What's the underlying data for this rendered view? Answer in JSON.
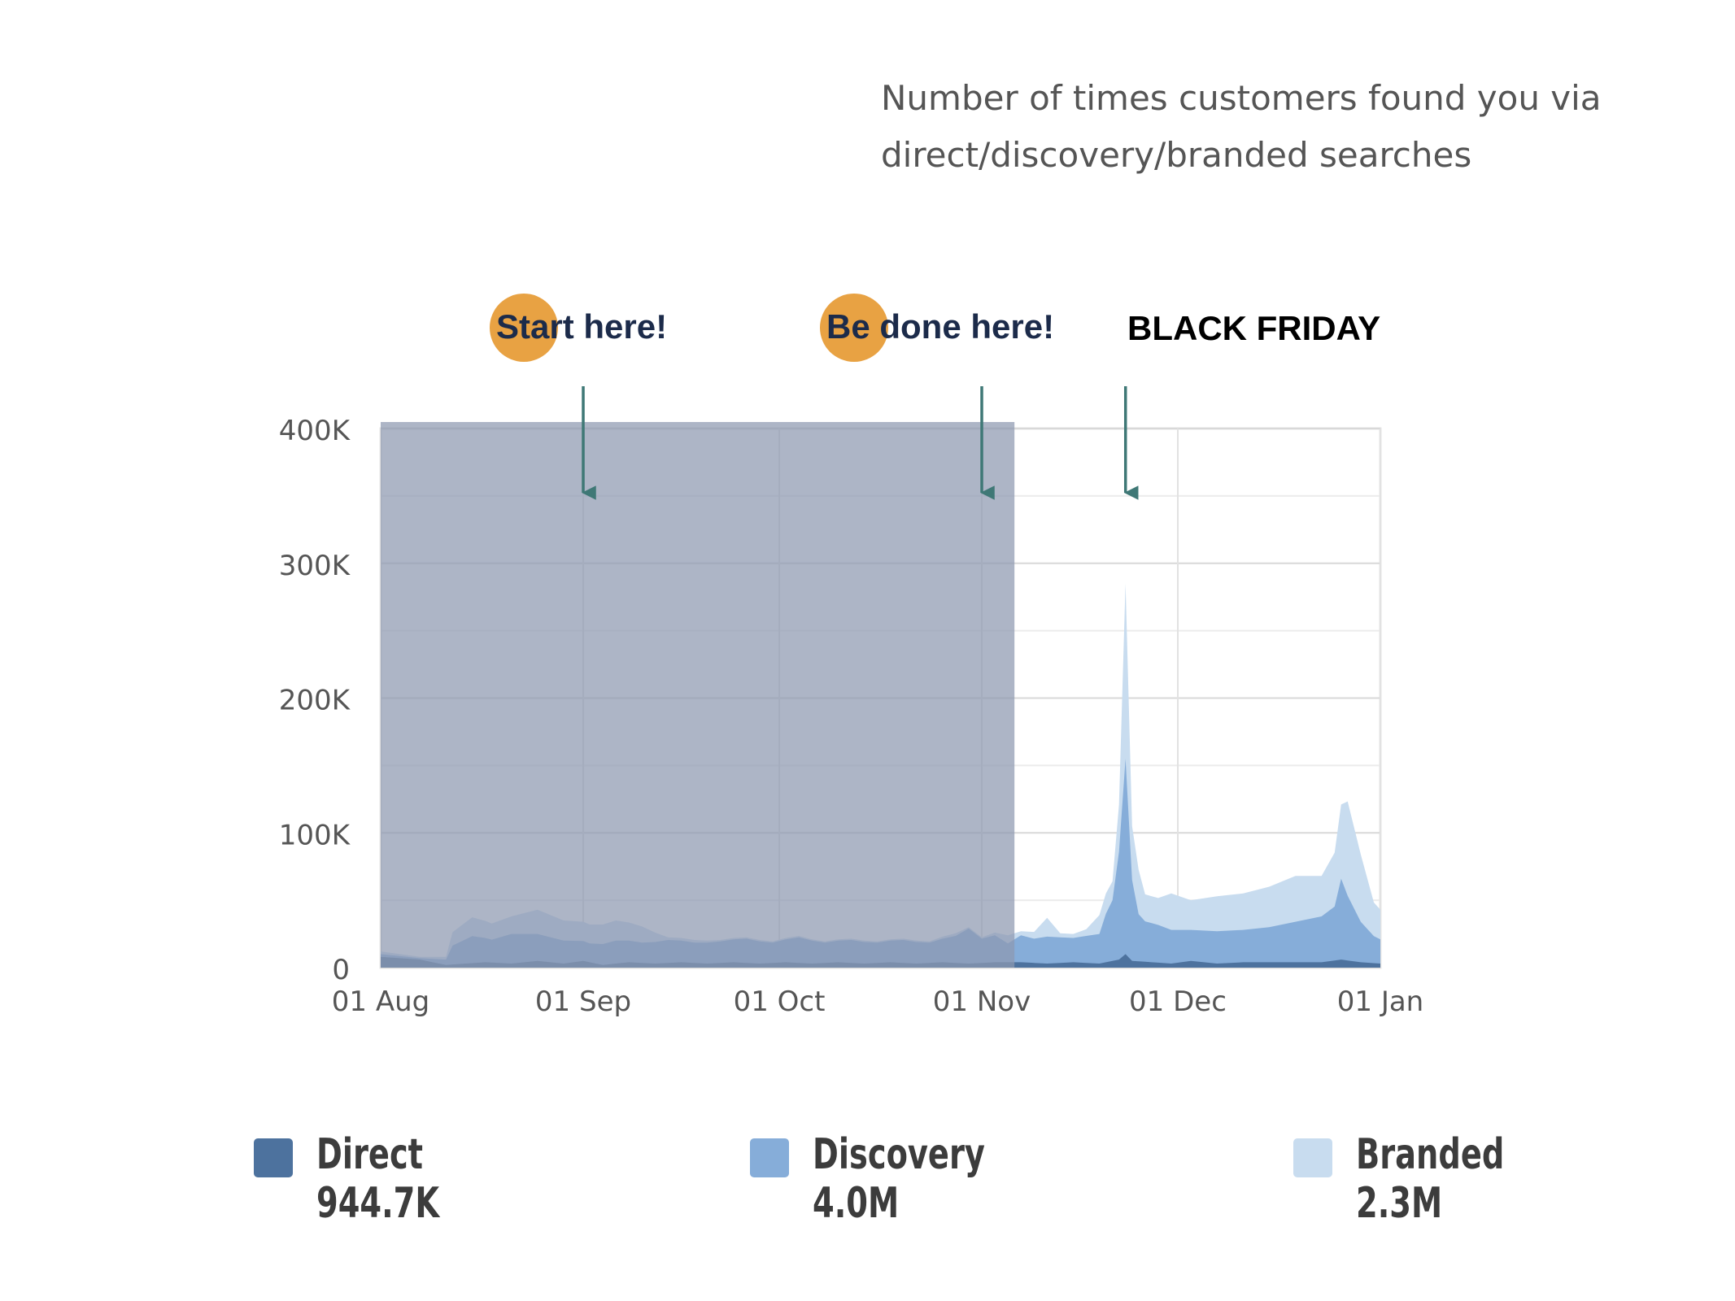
{
  "description": {
    "line1": "Number of times customers found you via",
    "line2": "direct/discovery/branded searches"
  },
  "annotations": {
    "start": "Start here!",
    "done": "Be done here!",
    "black_friday": "BLACK FRIDAY"
  },
  "legend": [
    {
      "name": "Direct",
      "value": "944.7K",
      "color": "#4d729e"
    },
    {
      "name": "Discovery",
      "value": "4.0M",
      "color": "#86add9"
    },
    {
      "name": "Branded",
      "value": "2.3M",
      "color": "#c8dcef"
    }
  ],
  "colors": {
    "highlight": "#8e98b0",
    "arrow": "#3f7876",
    "accent_circle": "#e8a243",
    "grid": "#dcdcdc"
  },
  "chart_data": {
    "type": "area",
    "stacked": true,
    "x_unit": "days since 01 Aug",
    "xticks": [
      {
        "label": "01 Aug",
        "day": 0
      },
      {
        "label": "01 Sep",
        "day": 31
      },
      {
        "label": "01 Oct",
        "day": 61
      },
      {
        "label": "01 Nov",
        "day": 92
      },
      {
        "label": "01 Dec",
        "day": 122
      },
      {
        "label": "01 Jan",
        "day": 153
      }
    ],
    "yticks": [
      {
        "label": "0",
        "value": 0
      },
      {
        "label": "100K",
        "value": 100000
      },
      {
        "label": "200K",
        "value": 200000
      },
      {
        "label": "300K",
        "value": 300000
      },
      {
        "label": "400K",
        "value": 400000
      }
    ],
    "ylim": [
      0,
      400000
    ],
    "xlim": [
      0,
      153
    ],
    "highlight_range": [
      0,
      97
    ],
    "annotation_days": {
      "start": 31,
      "done": 92,
      "black_friday": 114
    },
    "series": [
      {
        "name": "Direct",
        "color": "#4d729e",
        "points": [
          [
            0,
            8000
          ],
          [
            6,
            6000
          ],
          [
            10,
            2000
          ],
          [
            13,
            3000
          ],
          [
            16,
            4000
          ],
          [
            20,
            3000
          ],
          [
            24,
            5000
          ],
          [
            28,
            3000
          ],
          [
            31,
            5000
          ],
          [
            34,
            2000
          ],
          [
            38,
            4000
          ],
          [
            42,
            3000
          ],
          [
            46,
            4000
          ],
          [
            50,
            3000
          ],
          [
            54,
            4000
          ],
          [
            58,
            3000
          ],
          [
            62,
            4000
          ],
          [
            66,
            3000
          ],
          [
            70,
            4000
          ],
          [
            74,
            3000
          ],
          [
            78,
            4000
          ],
          [
            82,
            3000
          ],
          [
            86,
            4000
          ],
          [
            90,
            3000
          ],
          [
            94,
            4000
          ],
          [
            98,
            4000
          ],
          [
            102,
            3000
          ],
          [
            106,
            4000
          ],
          [
            110,
            3000
          ],
          [
            113,
            6000
          ],
          [
            114,
            10000
          ],
          [
            115,
            5000
          ],
          [
            118,
            4000
          ],
          [
            121,
            3000
          ],
          [
            124,
            5000
          ],
          [
            128,
            3000
          ],
          [
            132,
            4000
          ],
          [
            136,
            4000
          ],
          [
            140,
            4000
          ],
          [
            144,
            4000
          ],
          [
            147,
            6000
          ],
          [
            150,
            4000
          ],
          [
            153,
            3000
          ]
        ]
      },
      {
        "name": "Discovery",
        "color": "#86add9",
        "points": [
          [
            0,
            2000
          ],
          [
            6,
            1000
          ],
          [
            10,
            4000
          ],
          [
            11,
            14000
          ],
          [
            14,
            20000
          ],
          [
            17,
            17000
          ],
          [
            20,
            22000
          ],
          [
            24,
            20000
          ],
          [
            28,
            17000
          ],
          [
            32,
            14000
          ],
          [
            36,
            17000
          ],
          [
            40,
            15000
          ],
          [
            44,
            17000
          ],
          [
            48,
            15000
          ],
          [
            52,
            16000
          ],
          [
            56,
            18000
          ],
          [
            60,
            15000
          ],
          [
            64,
            19000
          ],
          [
            68,
            15000
          ],
          [
            72,
            17000
          ],
          [
            76,
            15000
          ],
          [
            80,
            17000
          ],
          [
            84,
            15000
          ],
          [
            88,
            20000
          ],
          [
            90,
            26000
          ],
          [
            92,
            18000
          ],
          [
            94,
            20000
          ],
          [
            96,
            14000
          ],
          [
            98,
            20000
          ],
          [
            100,
            18000
          ],
          [
            102,
            20000
          ],
          [
            104,
            19000
          ],
          [
            106,
            18000
          ],
          [
            108,
            20000
          ],
          [
            110,
            22000
          ],
          [
            111,
            36000
          ],
          [
            112,
            45000
          ],
          [
            113,
            80000
          ],
          [
            114,
            145000
          ],
          [
            115,
            60000
          ],
          [
            116,
            35000
          ],
          [
            117,
            30000
          ],
          [
            119,
            28000
          ],
          [
            121,
            25000
          ],
          [
            124,
            23000
          ],
          [
            128,
            24000
          ],
          [
            132,
            24000
          ],
          [
            136,
            26000
          ],
          [
            140,
            30000
          ],
          [
            144,
            34000
          ],
          [
            146,
            40000
          ],
          [
            147,
            60000
          ],
          [
            148,
            48000
          ],
          [
            150,
            30000
          ],
          [
            152,
            20000
          ],
          [
            153,
            18000
          ]
        ]
      },
      {
        "name": "Branded",
        "color": "#c8dcef",
        "points": [
          [
            0,
            2000
          ],
          [
            6,
            1000
          ],
          [
            10,
            2000
          ],
          [
            11,
            10000
          ],
          [
            14,
            14000
          ],
          [
            17,
            12000
          ],
          [
            20,
            13000
          ],
          [
            24,
            18000
          ],
          [
            28,
            15000
          ],
          [
            32,
            14000
          ],
          [
            36,
            15000
          ],
          [
            40,
            12000
          ],
          [
            44,
            2000
          ],
          [
            48,
            2000
          ],
          [
            52,
            1000
          ],
          [
            56,
            1000
          ],
          [
            60,
            1000
          ],
          [
            64,
            1000
          ],
          [
            68,
            1000
          ],
          [
            72,
            1000
          ],
          [
            76,
            1000
          ],
          [
            80,
            1000
          ],
          [
            84,
            1000
          ],
          [
            88,
            2000
          ],
          [
            90,
            1000
          ],
          [
            92,
            1000
          ],
          [
            94,
            2000
          ],
          [
            96,
            6000
          ],
          [
            98,
            3000
          ],
          [
            100,
            5000
          ],
          [
            102,
            14000
          ],
          [
            104,
            3000
          ],
          [
            106,
            3000
          ],
          [
            108,
            5000
          ],
          [
            110,
            14000
          ],
          [
            111,
            15000
          ],
          [
            112,
            14000
          ],
          [
            113,
            35000
          ],
          [
            114,
            130000
          ],
          [
            115,
            40000
          ],
          [
            116,
            33000
          ],
          [
            117,
            20000
          ],
          [
            119,
            20000
          ],
          [
            121,
            27000
          ],
          [
            124,
            22000
          ],
          [
            128,
            26000
          ],
          [
            132,
            27000
          ],
          [
            136,
            30000
          ],
          [
            140,
            34000
          ],
          [
            144,
            30000
          ],
          [
            146,
            40000
          ],
          [
            147,
            55000
          ],
          [
            148,
            70000
          ],
          [
            150,
            50000
          ],
          [
            152,
            25000
          ],
          [
            153,
            22000
          ]
        ]
      }
    ]
  }
}
